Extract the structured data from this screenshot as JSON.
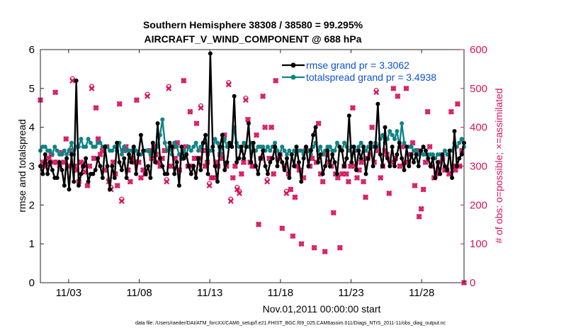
{
  "chart_data": {
    "type": "line",
    "title": "Southern Hemisphere 38308 / 38580 = 99.295%",
    "subtitle": "AIRCRAFT_V_WIND_COMPONENT @ 688 hPa",
    "xlabel": "Nov.01,2011 00:00:00 start",
    "ylabel": "rmse and totalspread",
    "ylabel_right": "# of obs: o=possible; ×=assimilated",
    "x_ticks": [
      "11/03",
      "11/08",
      "11/13",
      "11/18",
      "11/23",
      "11/28"
    ],
    "x_tick_days": [
      3,
      8,
      13,
      18,
      23,
      28
    ],
    "xlim": [
      1,
      31
    ],
    "ylim": [
      0,
      6
    ],
    "y_ticks": [
      "0",
      "1",
      "2",
      "3",
      "4",
      "5",
      "6"
    ],
    "ylim_right": [
      0,
      600
    ],
    "y_ticks_right": [
      "0",
      "100",
      "200",
      "300",
      "400",
      "500",
      "600"
    ],
    "legend_position": "top-right",
    "series": [
      {
        "name": "rmse grand pr = 3.3062",
        "color": "#000000",
        "axis": "left",
        "marker": "filled-circle",
        "values": [
          3.0,
          2.8,
          3.3,
          2.8,
          3.1,
          2.9,
          2.7,
          2.7,
          3.1,
          2.9,
          2.5,
          3.2,
          2.4,
          3.3,
          2.6,
          5.2,
          2.5,
          2.8,
          3.0,
          3.2,
          2.6,
          2.8,
          2.8,
          2.9,
          3.2,
          3.0,
          2.7,
          3.5,
          3.0,
          2.4,
          3.0,
          2.7,
          3.6,
          3.1,
          2.9,
          3.2,
          2.7,
          3.3,
          3.1,
          3.5,
          2.8,
          3.3,
          3.8,
          3.4,
          2.8,
          3.0,
          2.7,
          3.6,
          3.1,
          4.1,
          3.2,
          3.0,
          2.8,
          2.8,
          3.6,
          3.5,
          2.8,
          3.1,
          2.5,
          3.5,
          3.2,
          3.3,
          3.0,
          2.8,
          3.0,
          2.7,
          3.2,
          2.9,
          3.6,
          3.8,
          2.8,
          5.9,
          3.5,
          3.0,
          2.6,
          3.5,
          3.8,
          2.9,
          3.1,
          3.6,
          3.5,
          4.8,
          3.1,
          3.2,
          3.5,
          3.2,
          3.5,
          4.1,
          3.1,
          3.6,
          3.0,
          2.8,
          3.2,
          3.4,
          3.0,
          2.8,
          3.1,
          3.2,
          3.5,
          3.0,
          3.3,
          3.1,
          2.9,
          3.2,
          2.7,
          3.3,
          3.0,
          3.5,
          3.1,
          2.6,
          3.2,
          3.5,
          3.0,
          3.4,
          3.8,
          4.0,
          3.1,
          3.3,
          2.8,
          3.0,
          3.4,
          3.0,
          3.3,
          3.1,
          2.8,
          3.5,
          3.4,
          3.0,
          3.2,
          4.3,
          3.1,
          3.5,
          2.9,
          3.4,
          3.2,
          3.5,
          2.8,
          3.2,
          3.6,
          3.0,
          3.5,
          4.6,
          3.3,
          3.0,
          4.0,
          3.2,
          3.0,
          3.5,
          3.0,
          3.3,
          3.6,
          3.2,
          2.9,
          3.5,
          3.0,
          3.3,
          3.1,
          3.3,
          3.0,
          3.4,
          3.5,
          3.4,
          3.2,
          3.0,
          3.2,
          2.7,
          3.1,
          2.8,
          3.3,
          3.0,
          2.9,
          3.4,
          2.7,
          3.9,
          3.0,
          3.2,
          3.3,
          3.6
        ]
      },
      {
        "name": "totalspread grand pr = 3.4938",
        "color": "#108384",
        "axis": "left",
        "marker": "filled-circle",
        "values": [
          3.4,
          3.5,
          3.5,
          3.4,
          3.4,
          3.3,
          3.5,
          3.4,
          3.3,
          3.3,
          3.4,
          3.3,
          3.4,
          3.6,
          3.3,
          3.5,
          3.5,
          3.7,
          3.5,
          3.5,
          3.7,
          3.6,
          3.5,
          3.5,
          3.6,
          3.6,
          3.5,
          3.5,
          3.5,
          3.4,
          3.4,
          3.5,
          3.4,
          3.6,
          3.3,
          3.5,
          3.4,
          3.4,
          3.4,
          3.5,
          3.4,
          3.3,
          3.3,
          3.4,
          3.4,
          3.4,
          3.3,
          3.4,
          3.4,
          3.5,
          3.8,
          4.2,
          3.6,
          3.4,
          3.5,
          3.3,
          3.6,
          3.5,
          3.3,
          3.2,
          3.4,
          3.3,
          3.5,
          3.4,
          3.5,
          3.6,
          3.4,
          3.5,
          3.6,
          3.8,
          3.3,
          3.4,
          3.4,
          3.7,
          3.6,
          3.3,
          3.5,
          3.7,
          3.5,
          3.6,
          3.5,
          4.0,
          3.6,
          3.5,
          3.4,
          3.6,
          3.5,
          3.5,
          3.6,
          3.4,
          3.4,
          3.5,
          3.5,
          3.5,
          3.4,
          3.5,
          3.4,
          3.5,
          3.6,
          3.4,
          3.3,
          3.5,
          3.4,
          3.3,
          3.4,
          3.3,
          3.4,
          3.3,
          3.4,
          3.4,
          3.3,
          3.5,
          3.4,
          3.3,
          3.5,
          3.6,
          3.4,
          3.5,
          3.3,
          3.4,
          3.5,
          3.5,
          3.4,
          3.4,
          3.6,
          3.5,
          3.4,
          3.6,
          3.5,
          3.4,
          3.5,
          3.5,
          3.4,
          3.5,
          3.6,
          3.5,
          3.4,
          3.5,
          3.6,
          3.5,
          3.6,
          3.5,
          3.7,
          3.8,
          3.6,
          3.7,
          3.9,
          3.8,
          3.7,
          3.9,
          3.5,
          4.1,
          3.6,
          3.5,
          3.5,
          3.5,
          3.4,
          3.4,
          3.3,
          3.4,
          3.3,
          3.3,
          3.3,
          3.3,
          3.3,
          3.2,
          3.3,
          3.3,
          3.3,
          3.4,
          3.3,
          3.4,
          3.4,
          3.6,
          3.5,
          3.6,
          3.7,
          3.5
        ]
      },
      {
        "name": "obs assimilated",
        "color": "#d6145f",
        "axis": "right",
        "marker": "x-circle",
        "values": [
          470,
          310,
          300,
          305,
          320,
          330,
          310,
          490,
          310,
          300,
          335,
          310,
          370,
          300,
          340,
          520,
          300,
          290,
          260,
          310,
          300,
          285,
          250,
          300,
          500,
          320,
          450,
          370,
          330,
          340,
          290,
          350,
          260,
          240,
          310,
          280,
          250,
          460,
          210,
          340,
          350,
          290,
          260,
          320,
          310,
          470,
          310,
          270,
          290,
          280,
          480,
          340,
          320,
          350,
          330,
          310,
          300,
          320,
          340,
          260,
          500,
          300,
          350,
          320,
          360,
          290,
          320,
          520,
          350,
          300,
          440,
          300,
          320,
          410,
          320,
          450,
          340,
          300,
          310,
          250,
          270,
          270,
          310,
          300,
          330,
          320,
          380,
          300,
          510,
          210,
          270,
          300,
          240,
          230,
          280,
          310,
          470,
          420,
          310,
          300,
          300,
          380,
          150,
          320,
          480,
          400,
          260,
          320,
          400,
          280,
          520,
          320,
          330,
          140,
          300,
          230,
          280,
          240,
          120,
          220,
          300,
          290,
          100,
          270,
          340,
          340,
          300,
          320,
          90,
          310,
          410,
          280,
          260,
          80,
          330,
          310,
          300,
          180,
          280,
          270,
          90,
          280,
          300,
          280,
          260,
          300,
          450,
          300,
          270,
          290,
          310,
          260,
          220,
          320,
          330,
          400,
          310,
          490,
          340,
          270,
          300,
          340,
          330,
          230,
          310,
          500,
          320,
          480,
          300,
          350,
          310,
          500,
          310,
          330,
          360,
          250,
          340,
          170,
          190,
          240,
          310,
          440,
          350,
          300,
          270,
          280,
          290,
          310,
          320,
          290,
          290,
          280,
          440,
          300,
          290,
          460,
          300,
          340,
          0
        ]
      },
      {
        "name": "obs possible",
        "color": "#d6145f",
        "axis": "right",
        "marker": "open-circle",
        "values": [
          470,
          310,
          300,
          305,
          320,
          330,
          310,
          490,
          310,
          300,
          335,
          310,
          370,
          300,
          340,
          525,
          300,
          290,
          260,
          310,
          300,
          285,
          250,
          300,
          505,
          320,
          450,
          370,
          330,
          340,
          290,
          350,
          265,
          245,
          310,
          280,
          250,
          460,
          215,
          340,
          350,
          290,
          260,
          320,
          310,
          470,
          310,
          270,
          290,
          280,
          485,
          340,
          320,
          350,
          330,
          310,
          300,
          320,
          340,
          265,
          505,
          300,
          350,
          320,
          360,
          290,
          320,
          520,
          350,
          300,
          440,
          300,
          320,
          410,
          320,
          455,
          340,
          300,
          310,
          255,
          270,
          270,
          310,
          300,
          330,
          320,
          380,
          300,
          515,
          215,
          270,
          300,
          245,
          235,
          280,
          310,
          475,
          420,
          310,
          300,
          300,
          380,
          150,
          320,
          480,
          400,
          265,
          320,
          400,
          280,
          520,
          320,
          330,
          140,
          300,
          235,
          280,
          240,
          120,
          220,
          300,
          290,
          100,
          270,
          340,
          340,
          300,
          320,
          90,
          310,
          410,
          280,
          260,
          80,
          330,
          310,
          300,
          180,
          280,
          270,
          90,
          280,
          300,
          280,
          260,
          300,
          450,
          300,
          270,
          290,
          310,
          260,
          220,
          320,
          330,
          400,
          310,
          495,
          340,
          270,
          300,
          340,
          330,
          230,
          310,
          500,
          320,
          480,
          300,
          350,
          310,
          500,
          310,
          330,
          360,
          250,
          340,
          170,
          190,
          240,
          310,
          440,
          350,
          300,
          270,
          280,
          290,
          310,
          320,
          290,
          290,
          280,
          440,
          300,
          290,
          460,
          300,
          340,
          0
        ]
      }
    ]
  },
  "footer": "data file: /Users/raeder/DAI/ATM_forcXX/CAM6_setup/f.e21.FHIST_BGC.f09_025.CAM6assim.011/Diags_NTrS_2011-11/obs_diag_output.nc"
}
